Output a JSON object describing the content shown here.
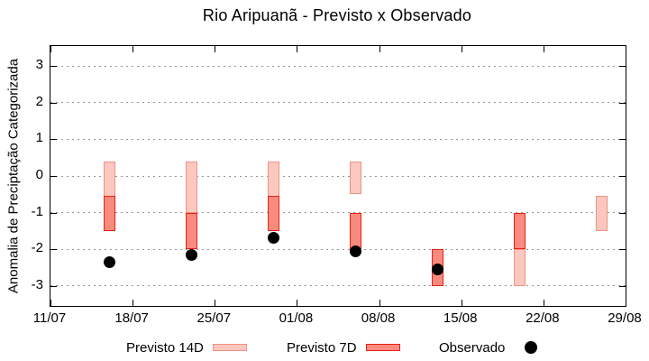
{
  "title": "Rio Aripuanã - Previsto x Observado",
  "y_axis_label": "Anomalia de Preciptação Categorizada",
  "legend": [
    {
      "label": "Previsto 14D",
      "swatch": "p14"
    },
    {
      "label": "Previsto 7D",
      "swatch": "p7"
    },
    {
      "label": "Observado",
      "swatch": "obs"
    }
  ],
  "colors": {
    "p14_fill": "#fbc8c0",
    "p14_border": "#f0917f",
    "p7_fill": "#f98b7e",
    "p7_border": "#e62114",
    "observed": "#000000",
    "grid": "#969696",
    "axis": "#000000"
  },
  "chart_data": {
    "type": "bar",
    "subtype": "forecast-range-bars-with-observed-scatter",
    "title": "Rio Aripuanã - Previsto x Observado",
    "xlabel": "",
    "ylabel": "Anomalia de Preciptação Categorizada",
    "ylim": [
      -3.55,
      3.55
    ],
    "yticks": [
      3,
      2,
      1,
      0,
      -1,
      -2,
      -3
    ],
    "grid": "horizontal-dotted",
    "legend_position": "bottom-outside",
    "xlim_days": [
      0,
      49
    ],
    "xtick_days": [
      0,
      7,
      14,
      21,
      28,
      35,
      42,
      49
    ],
    "xtick_labels": [
      "11/07",
      "18/07",
      "25/07",
      "01/08",
      "08/08",
      "15/08",
      "22/08",
      "29/08"
    ],
    "series": [
      {
        "name": "Previsto 14D",
        "type": "range-bar",
        "fill": "#fbc8c0",
        "border": "#f0917f",
        "points": [
          {
            "day": 5,
            "date": "16/07",
            "hi": 0.4,
            "lo": -1.5
          },
          {
            "day": 12,
            "date": "23/07",
            "hi": 0.4,
            "lo": -1.0
          },
          {
            "day": 19,
            "date": "30/07",
            "hi": 0.4,
            "lo": -1.5
          },
          {
            "day": 26,
            "date": "06/08",
            "hi": 0.4,
            "lo": -0.5
          },
          {
            "day": 40,
            "date": "20/08",
            "hi": -2.0,
            "lo": -3.0
          },
          {
            "day": 47,
            "date": "27/08",
            "hi": -0.55,
            "lo": -1.5
          }
        ]
      },
      {
        "name": "Previsto 7D",
        "type": "range-bar",
        "fill": "#f98b7e",
        "border": "#e62114",
        "points": [
          {
            "day": 5,
            "date": "16/07",
            "hi": -0.55,
            "lo": -1.5
          },
          {
            "day": 12,
            "date": "23/07",
            "hi": -1.0,
            "lo": -2.0
          },
          {
            "day": 19,
            "date": "30/07",
            "hi": -0.55,
            "lo": -1.5
          },
          {
            "day": 26,
            "date": "06/08",
            "hi": -1.0,
            "lo": -2.0
          },
          {
            "day": 33,
            "date": "13/08",
            "hi": -2.0,
            "lo": -3.0
          },
          {
            "day": 40,
            "date": "20/08",
            "hi": -1.0,
            "lo": -2.0
          }
        ]
      },
      {
        "name": "Observado",
        "type": "scatter",
        "color": "#000000",
        "points": [
          {
            "day": 5,
            "date": "16/07",
            "y": -2.35
          },
          {
            "day": 12,
            "date": "23/07",
            "y": -2.15
          },
          {
            "day": 19,
            "date": "30/07",
            "y": -1.7
          },
          {
            "day": 26,
            "date": "06/08",
            "y": -2.05
          },
          {
            "day": 33,
            "date": "13/08",
            "y": -2.55
          }
        ]
      }
    ]
  }
}
